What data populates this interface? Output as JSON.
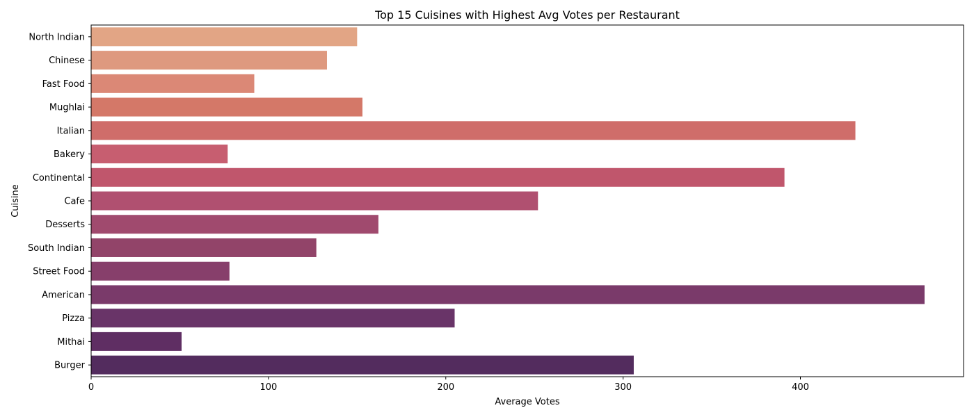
{
  "chart_data": {
    "type": "bar",
    "orientation": "horizontal",
    "title": "Top 15 Cuisines with Highest Avg Votes per Restaurant",
    "xlabel": "Average Votes",
    "ylabel": "Cuisine",
    "xlim": [
      0,
      492
    ],
    "xticks": [
      "0",
      "100",
      "200",
      "300",
      "400"
    ],
    "grid": false,
    "categories": [
      "North Indian",
      "Chinese",
      "Fast Food",
      "Mughlai",
      "Italian",
      "Bakery",
      "Continental",
      "Cafe",
      "Desserts",
      "South Indian",
      "Street Food",
      "American",
      "Pizza",
      "Mithai",
      "Burger"
    ],
    "values": [
      150,
      133,
      92,
      153,
      431,
      77,
      391,
      252,
      162,
      127,
      78,
      470,
      205,
      51,
      306
    ],
    "colors": [
      "#e2a585",
      "#de997f",
      "#db8876",
      "#d47868",
      "#cf6d6a",
      "#c75e70",
      "#c0566c",
      "#b05070",
      "#a04a6e",
      "#924469",
      "#873f6b",
      "#7a3a6a",
      "#693468",
      "#5f2e63",
      "#532c5e"
    ]
  }
}
